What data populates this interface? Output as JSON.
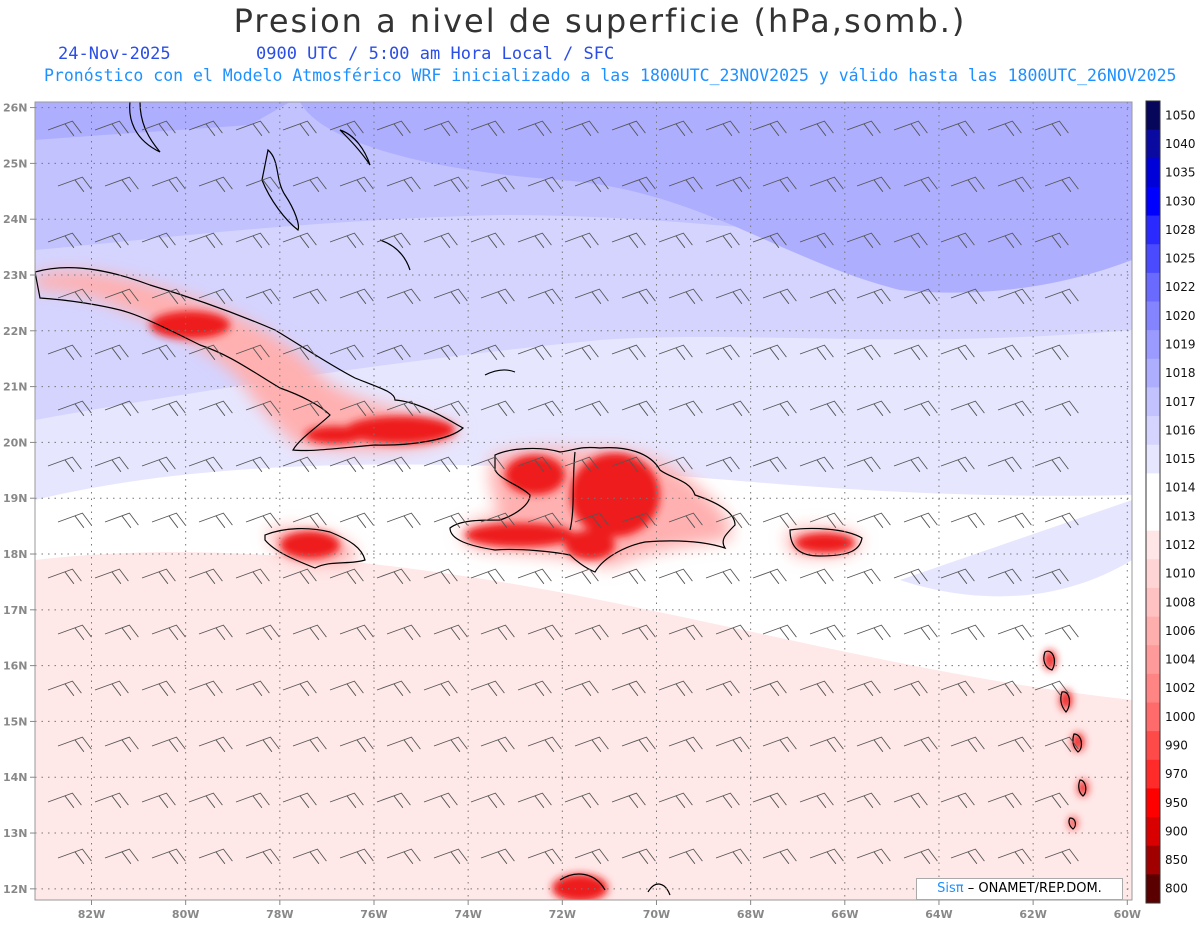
{
  "title": "Presion a nivel de superficie (hPa,somb.)",
  "header": {
    "date": "24-Nov-2025",
    "valid_time": "0900 UTC / 5:00 am Hora Local / SFC",
    "forecast_info": "Pronóstico con el Modelo Atmosférico WRF inicializado a las 1800UTC_23NOV2025 y válido hasta las  1800UTC_26NOV2025"
  },
  "credit": {
    "brand": "Sisπ",
    "text": "– ONAMET/REP.DOM."
  },
  "map": {
    "lon_range": [
      -83.2,
      -59.9
    ],
    "lat_range": [
      11.8,
      26.1
    ],
    "lon_ticks": [
      "82W",
      "80W",
      "78W",
      "76W",
      "74W",
      "72W",
      "70W",
      "68W",
      "66W",
      "64W",
      "62W",
      "60W"
    ],
    "lat_ticks": [
      "12N",
      "13N",
      "14N",
      "15N",
      "16N",
      "17N",
      "18N",
      "19N",
      "20N",
      "21N",
      "22N",
      "23N",
      "24N",
      "25N",
      "26N"
    ],
    "grid": "dotted"
  },
  "colorbar": {
    "labels": [
      "1050",
      "1040",
      "1035",
      "1030",
      "1028",
      "1025",
      "1022",
      "1020",
      "1019",
      "1018",
      "1017",
      "1016",
      "1015",
      "1014",
      "1013",
      "1012",
      "1010",
      "1008",
      "1006",
      "1004",
      "1002",
      "1000",
      "990",
      "970",
      "950",
      "900",
      "850",
      "800"
    ],
    "colors": [
      "#06065a",
      "#0a0aa0",
      "#0000d8",
      "#0000ff",
      "#2a2aff",
      "#4a4aff",
      "#6a6aff",
      "#8484ff",
      "#9a9aff",
      "#aeaeff",
      "#c2c2ff",
      "#d4d4ff",
      "#e6e6ff",
      "#ffffff",
      "#ffffff",
      "#ffe6e6",
      "#ffd4d4",
      "#ffc2c2",
      "#ffaeae",
      "#ff9a9a",
      "#ff8484",
      "#ff6a6a",
      "#ff4a4a",
      "#ff2a2a",
      "#ff0000",
      "#d80000",
      "#a00000",
      "#5a0000"
    ]
  }
}
